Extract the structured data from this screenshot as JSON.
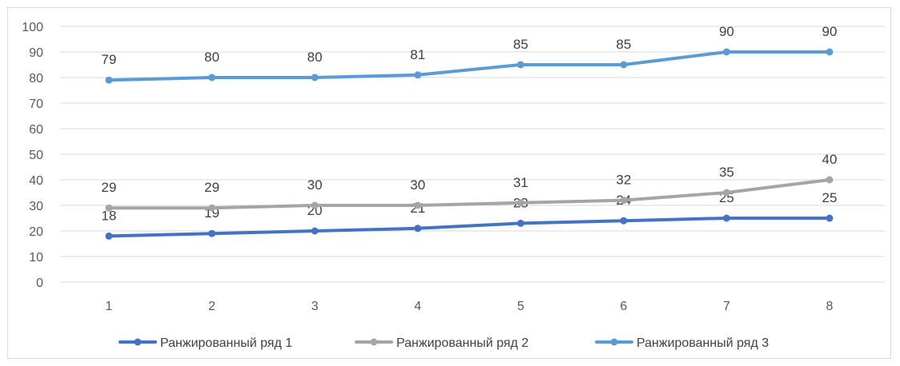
{
  "chart_data": {
    "type": "line",
    "title": "",
    "xlabel": "",
    "ylabel": "",
    "categories": [
      "1",
      "2",
      "3",
      "4",
      "5",
      "6",
      "7",
      "8"
    ],
    "ylim": [
      0,
      100
    ],
    "yticks": [
      "0",
      "10",
      "20",
      "30",
      "40",
      "50",
      "60",
      "70",
      "80",
      "90",
      "100"
    ],
    "grid": true,
    "legend_position": "bottom",
    "series": [
      {
        "name": "Ранжированный ряд 1",
        "color": "#4472c4",
        "values": [
          18,
          19,
          20,
          21,
          23,
          24,
          25,
          25
        ]
      },
      {
        "name": "Ранжированный ряд 2",
        "color": "#a5a5a5",
        "values": [
          29,
          29,
          30,
          30,
          31,
          32,
          35,
          40
        ]
      },
      {
        "name": "Ранжированный ряд 3",
        "color": "#5b9bd5",
        "values": [
          79,
          80,
          80,
          81,
          85,
          85,
          90,
          90
        ]
      }
    ]
  }
}
